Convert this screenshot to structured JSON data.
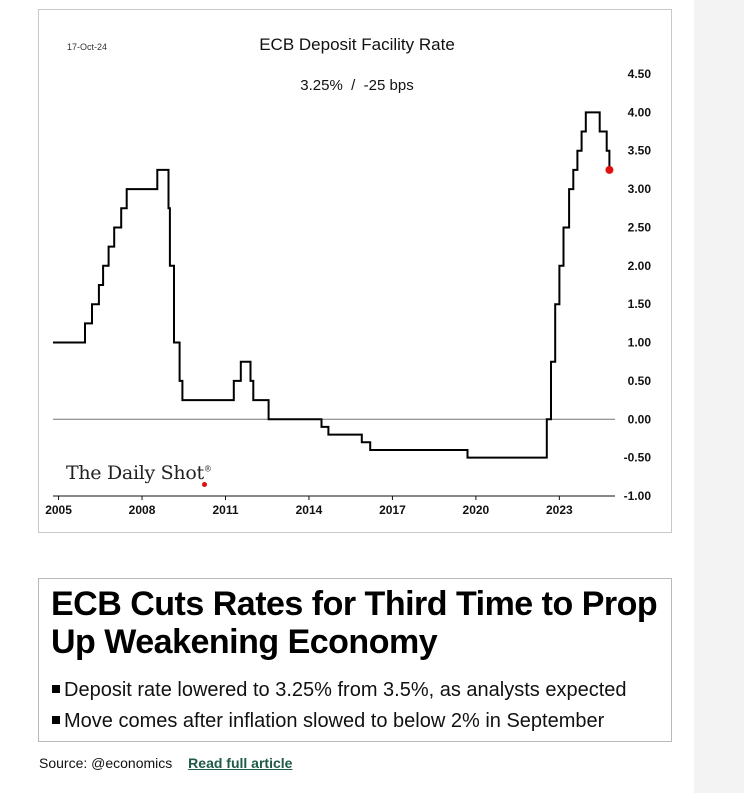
{
  "chart_data": {
    "type": "line",
    "line_shape": "step",
    "date_label": "17-Oct-24",
    "title": "ECB Deposit Facility Rate",
    "subtitle": "3.25%  /  -25 bps",
    "y_axis_position": "right",
    "ylim": [
      -1.0,
      4.5
    ],
    "yticks": [
      "4.50",
      "4.00",
      "3.50",
      "3.00",
      "2.50",
      "2.00",
      "1.50",
      "1.00",
      "0.50",
      "0.00",
      "-0.50",
      "-1.00"
    ],
    "xlim": [
      2004.8,
      2025.0
    ],
    "xticks": [
      "2005",
      "2008",
      "2011",
      "2014",
      "2017",
      "2020",
      "2023"
    ],
    "zero_line": true,
    "series": [
      {
        "color": "#000000",
        "points": [
          [
            2004.8,
            1.0
          ],
          [
            2005.95,
            1.25
          ],
          [
            2006.2,
            1.5
          ],
          [
            2006.45,
            1.75
          ],
          [
            2006.6,
            2.0
          ],
          [
            2006.8,
            2.25
          ],
          [
            2007.0,
            2.5
          ],
          [
            2007.25,
            2.75
          ],
          [
            2007.45,
            3.0
          ],
          [
            2008.55,
            3.25
          ],
          [
            2008.95,
            2.75
          ],
          [
            2009.0,
            2.0
          ],
          [
            2009.15,
            1.0
          ],
          [
            2009.35,
            0.5
          ],
          [
            2009.45,
            0.25
          ],
          [
            2011.3,
            0.5
          ],
          [
            2011.55,
            0.75
          ],
          [
            2011.9,
            0.5
          ],
          [
            2012.0,
            0.25
          ],
          [
            2012.55,
            0.0
          ],
          [
            2014.45,
            -0.1
          ],
          [
            2014.7,
            -0.2
          ],
          [
            2015.9,
            -0.3
          ],
          [
            2016.2,
            -0.4
          ],
          [
            2019.7,
            -0.5
          ],
          [
            2022.55,
            0.0
          ],
          [
            2022.7,
            0.75
          ],
          [
            2022.85,
            1.5
          ],
          [
            2023.0,
            2.0
          ],
          [
            2023.15,
            2.5
          ],
          [
            2023.35,
            3.0
          ],
          [
            2023.5,
            3.25
          ],
          [
            2023.65,
            3.5
          ],
          [
            2023.8,
            3.75
          ],
          [
            2023.95,
            4.0
          ],
          [
            2024.45,
            3.75
          ],
          [
            2024.7,
            3.5
          ],
          [
            2024.8,
            3.25
          ]
        ]
      }
    ],
    "latest_point": {
      "x": 2024.8,
      "y": 3.25,
      "color": "#e01010"
    },
    "watermark": "The Daily Shot"
  },
  "headline": {
    "title": "ECB Cuts Rates for Third Time to Prop Up Weakening Economy",
    "bullets": [
      "Deposit rate lowered to 3.25% from 3.5%, as analysts expected",
      "Move comes after inflation slowed to below 2% in September"
    ]
  },
  "footer": {
    "source": "Source: @economics",
    "link_label": "Read full article"
  },
  "colors": {
    "line": "#000000",
    "highlight": "#e01010",
    "link": "#1e5a47",
    "frame_border": "#c8c8c8"
  }
}
